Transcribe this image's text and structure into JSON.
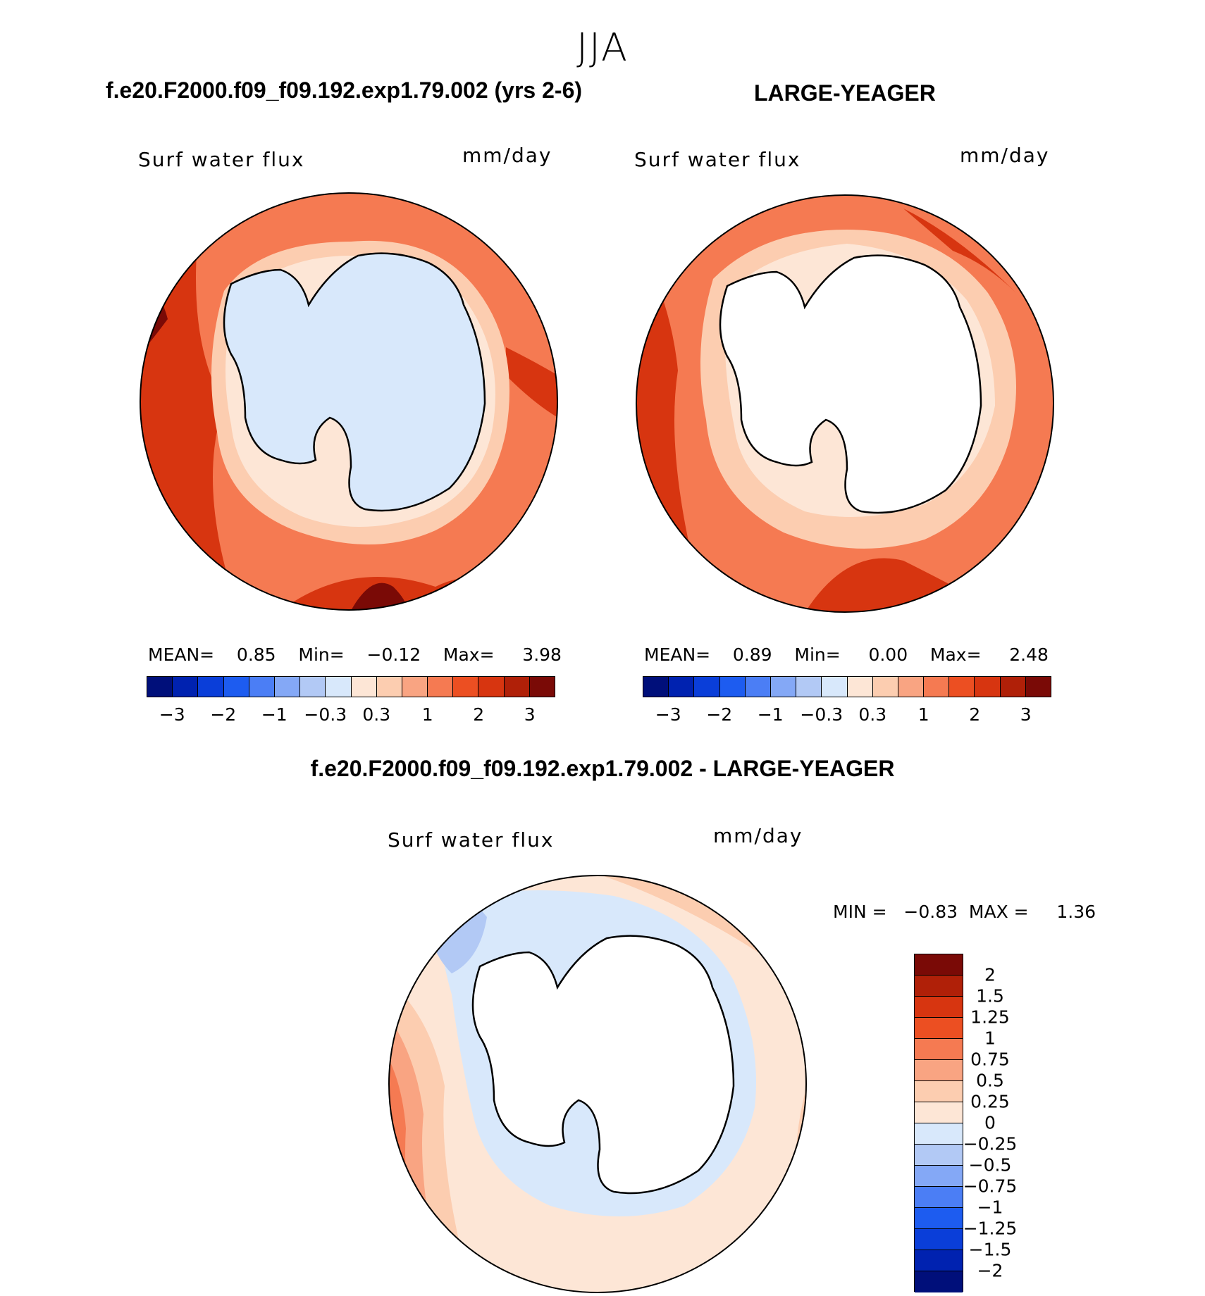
{
  "figure": {
    "season": "JJA",
    "panels": [
      {
        "title": "f.e20.F2000.f09_f09.192.exp1.79.002 (yrs 2-6)",
        "variable": "Surf water flux",
        "units": "mm/day",
        "stats": {
          "mean_label": "MEAN=",
          "mean": "0.85",
          "min_label": "Min=",
          "min": "−0.12",
          "max_label": "Max=",
          "max": "3.98"
        }
      },
      {
        "title": "LARGE-YEAGER",
        "variable": "Surf water flux",
        "units": "mm/day",
        "stats": {
          "mean_label": "MEAN=",
          "mean": "0.89",
          "min_label": "Min=",
          "min": "0.00",
          "max_label": "Max=",
          "max": "2.48"
        }
      },
      {
        "title": "f.e20.F2000.f09_f09.192.exp1.79.002 - LARGE-YEAGER",
        "variable": "Surf water flux",
        "units": "mm/day",
        "stats": {
          "min_label": "MIN =",
          "min": "−0.83",
          "max_label": "MAX =",
          "max": "1.36"
        }
      }
    ]
  },
  "colors": {
    "abs_scale": [
      "#000f7a",
      "#0022b0",
      "#0a3ed9",
      "#1d5cf0",
      "#4b7ef5",
      "#84a8f6",
      "#b2c9f5",
      "#d8e8fb",
      "#fde6d6",
      "#fccdb0",
      "#f9a482",
      "#f57a52",
      "#ec4f22",
      "#d73510",
      "#b02008",
      "#7a0a06"
    ],
    "diff_scale": [
      "#7a0a06",
      "#b02008",
      "#d73510",
      "#ec4f22",
      "#f57a52",
      "#f9a482",
      "#fccdb0",
      "#fde6d6",
      "#d8e8fb",
      "#b2c9f5",
      "#84a8f6",
      "#4b7ef5",
      "#1d5cf0",
      "#0a3ed9",
      "#0022b0",
      "#000f7a"
    ],
    "ocean_mid": "#f57a52",
    "ocean_outer": "#d73510",
    "ice_ring": "#fde6d6",
    "land_blue": "#d8e8fb"
  },
  "legends": {
    "abs_ticks": [
      "−3",
      "−2",
      "−1",
      "−0.3",
      "0.3",
      "1",
      "2",
      "3"
    ],
    "diff_ticks": [
      "2",
      "1.5",
      "1.25",
      "1",
      "0.75",
      "0.5",
      "0.25",
      "0",
      "−0.25",
      "−0.5",
      "−0.75",
      "−1",
      "−1.25",
      "−1.5",
      "−2"
    ]
  }
}
